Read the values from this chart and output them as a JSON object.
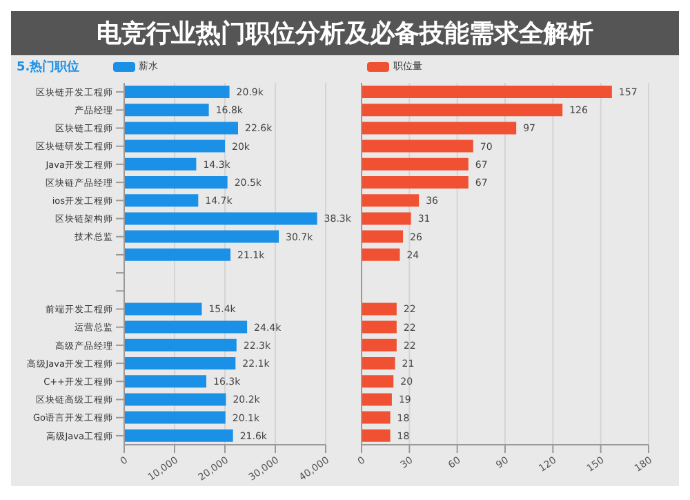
{
  "chart_data": [
    {
      "type": "bar",
      "orientation": "horizontal",
      "title": "5.热门职位",
      "subtitle": "电竞行业热门职位分析及必备技能需求全解析",
      "legend": "top left",
      "grid": "x",
      "tick_labels": "xy",
      "categories": [
        "区块链开发工程师",
        "产品经理",
        "区块链工程师",
        "区块链研发工程师",
        "Java开发工程师",
        "区块链产品经理",
        "ios开发工程师",
        "区块链架构师",
        "技术总监",
        null,
        null,
        null,
        "前端开发工程师",
        "运营总监",
        "高级产品经理",
        "高级Java开发工程师",
        "C++开发工程师",
        "区块链高级工程师",
        "Go语言开发工程师",
        "高级Java工程师"
      ],
      "series": [
        {
          "name": "薪水",
          "color": "#1a90e6",
          "values": [
            20900,
            16800,
            22600,
            20000,
            14300,
            20500,
            14700,
            38300,
            30700,
            21100,
            null,
            null,
            15400,
            24400,
            22300,
            22100,
            16300,
            20200,
            20100,
            21600
          ],
          "value_labels": [
            "20.9k",
            "16.8k",
            "22.6k",
            "20k",
            "14.3k",
            "20.5k",
            "14.7k",
            "38.3k",
            "30.7k",
            "21.1k",
            null,
            null,
            "15.4k",
            "24.4k",
            "22.3k",
            "22.1k",
            "16.3k",
            "20.2k",
            "20.1k",
            "21.6k"
          ]
        }
      ],
      "xlim": [
        0,
        40000
      ],
      "xticks": [
        0,
        {
          "value": 10000,
          "label": "10,000"
        },
        {
          "value": 20000,
          "label": "20,000"
        },
        {
          "value": 30000,
          "label": "30,000"
        },
        {
          "value": 40000,
          "label": "40,000"
        }
      ]
    },
    {
      "type": "bar",
      "orientation": "horizontal",
      "legend": "top left",
      "grid": "x",
      "tick_labels": "x",
      "data_labels": true,
      "categories": [
        null,
        null,
        null,
        null,
        null,
        null,
        null,
        null,
        null,
        null,
        null,
        null,
        null,
        null,
        null,
        null,
        null,
        null,
        null,
        null
      ],
      "series": [
        {
          "name": "职位量",
          "color": "#f05133",
          "values": [
            157,
            126,
            97,
            70,
            67,
            67,
            36,
            31,
            26,
            24,
            null,
            null,
            22,
            22,
            22,
            21,
            20,
            19,
            18,
            18
          ]
        }
      ],
      "xlim": [
        0,
        180
      ],
      "xticks": [
        0,
        30,
        60,
        90,
        120,
        150,
        180
      ]
    }
  ]
}
